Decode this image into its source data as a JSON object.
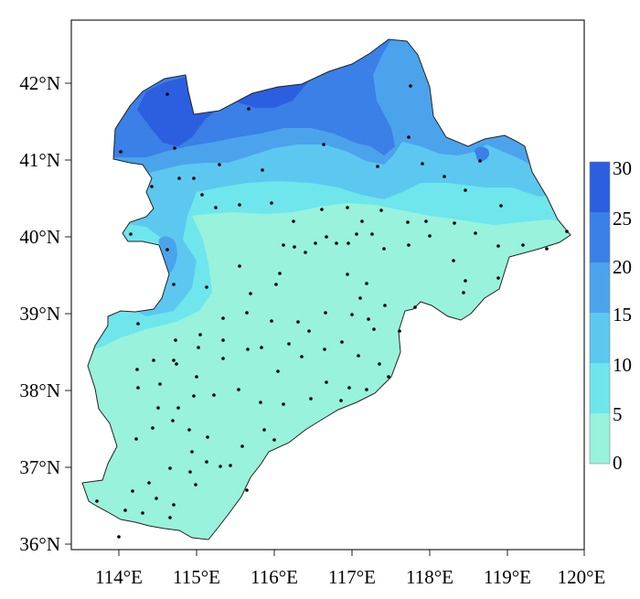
{
  "map": {
    "lon_ticks": [
      "114°E",
      "115°E",
      "116°E",
      "117°E",
      "118°E",
      "119°E",
      "120°E"
    ],
    "lat_ticks": [
      "42°N",
      "41°N",
      "40°N",
      "39°N",
      "38°N",
      "37°N",
      "36°N"
    ],
    "lon_range": [
      113.4,
      120.0
    ],
    "lat_range": [
      35.9,
      42.8
    ]
  },
  "colorbar": {
    "labels": [
      "30",
      "25",
      "20",
      "15",
      "10",
      "5",
      "0"
    ],
    "bins": [
      {
        "from": 25,
        "to": 30,
        "color": "#2b5fe0"
      },
      {
        "from": 20,
        "to": 25,
        "color": "#3a80e6"
      },
      {
        "from": 15,
        "to": 20,
        "color": "#4ba3ec"
      },
      {
        "from": 10,
        "to": 15,
        "color": "#5cc8f0"
      },
      {
        "from": 5,
        "to": 10,
        "color": "#6ee6ec"
      },
      {
        "from": 0,
        "to": 5,
        "color": "#98f2dc"
      }
    ]
  },
  "colors": {
    "band_0_5": "#98f2dc",
    "band_5_10": "#6ee6ec",
    "band_10_15": "#5cc8f0",
    "band_15_20": "#4ba3ec",
    "band_20_25": "#3a80e6",
    "band_25_30": "#2b5fe0",
    "boundary": "#222222",
    "station": "#000000"
  }
}
